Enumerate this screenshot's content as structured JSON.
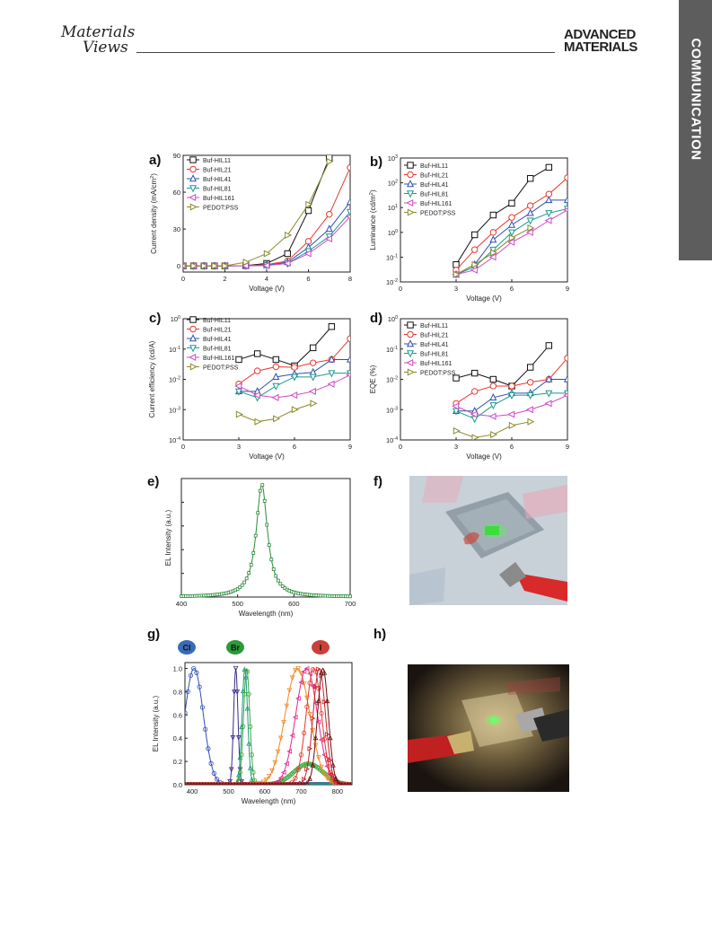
{
  "header": {
    "journal_left_line1": "Materials",
    "journal_left_line2": "Views",
    "journal_right_line1": "ADVANCED",
    "journal_right_line2": "MATERIALS",
    "section_tab": "COMMUNICATION"
  },
  "colors": {
    "HIL11": "#111111",
    "HIL21": "#e8372c",
    "HIL41": "#2f4fb5",
    "HIL81": "#1a9a8a",
    "HIL161": "#d048c8",
    "PEDOT": "#8a8a2a",
    "green": "#2a8a3a"
  },
  "legend_labels": [
    "Buf-HIL11",
    "Buf-HIL21",
    "Buf-HIL41",
    "Buf-HIL81",
    "Buf-HIL161",
    "PEDOT:PSS"
  ],
  "chart_data": [
    {
      "panel": "a)",
      "type": "line",
      "xlabel": "Voltage (V)",
      "ylabel": "Current density (mA/cm2)",
      "xlim": [
        0,
        8
      ],
      "ylim": [
        -5,
        90
      ],
      "xticks": [
        "0",
        "2",
        "4",
        "6",
        "8"
      ],
      "yticks": [
        "0",
        "30",
        "60",
        "90"
      ],
      "series": [
        {
          "name": "Buf-HIL11",
          "x": [
            0,
            0.5,
            1,
            1.5,
            2,
            3,
            4,
            5,
            6,
            7
          ],
          "y": [
            0,
            0,
            0,
            0,
            0,
            0.2,
            2,
            10,
            45,
            88
          ]
        },
        {
          "name": "Buf-HIL21",
          "x": [
            0,
            0.5,
            1,
            1.5,
            2,
            3,
            4,
            5,
            6,
            7,
            8
          ],
          "y": [
            0,
            0,
            0,
            0,
            0,
            0.1,
            1,
            4,
            20,
            42,
            80
          ]
        },
        {
          "name": "Buf-HIL41",
          "x": [
            0,
            0.5,
            1,
            1.5,
            2,
            3,
            4,
            5,
            6,
            7,
            8
          ],
          "y": [
            0,
            0,
            0,
            0,
            0,
            0.1,
            0.5,
            3,
            15,
            30,
            52
          ]
        },
        {
          "name": "Buf-HIL81",
          "x": [
            0,
            0.5,
            1,
            1.5,
            2,
            3,
            4,
            5,
            6,
            7,
            8
          ],
          "y": [
            0,
            0,
            0,
            0,
            0,
            0.1,
            0.5,
            2,
            12,
            24,
            44
          ]
        },
        {
          "name": "Buf-HIL161",
          "x": [
            0,
            0.5,
            1,
            1.5,
            2,
            3,
            4,
            5,
            6,
            7,
            8
          ],
          "y": [
            0,
            0,
            0,
            0,
            0,
            0.1,
            0.3,
            2,
            10,
            22,
            40
          ]
        },
        {
          "name": "PEDOT:PSS",
          "x": [
            0,
            0.5,
            1,
            1.5,
            2,
            3,
            4,
            5,
            6,
            7
          ],
          "y": [
            0,
            0,
            0,
            0,
            0,
            3,
            10,
            25,
            50,
            85
          ]
        }
      ]
    },
    {
      "panel": "b)",
      "type": "line",
      "xlabel": "Voltage (V)",
      "ylabel": "Luminance (cd/m2)",
      "yscale": "log",
      "xlim": [
        0,
        9
      ],
      "ylim": [
        0.01,
        1000
      ],
      "xticks": [
        "0",
        "3",
        "6",
        "9"
      ],
      "yticks": [
        "10-2",
        "10-1",
        "100",
        "101",
        "102",
        "103"
      ],
      "series": [
        {
          "name": "Buf-HIL11",
          "x": [
            3,
            4,
            5,
            6,
            7,
            8
          ],
          "y": [
            0.05,
            0.8,
            5,
            15,
            150,
            420
          ]
        },
        {
          "name": "Buf-HIL21",
          "x": [
            3,
            4,
            5,
            6,
            7,
            8,
            9
          ],
          "y": [
            0.03,
            0.2,
            1,
            4,
            12,
            35,
            160
          ]
        },
        {
          "name": "Buf-HIL41",
          "x": [
            3,
            4,
            5,
            6,
            7,
            8,
            9
          ],
          "y": [
            0.02,
            0.05,
            0.5,
            2,
            6,
            20,
            20
          ]
        },
        {
          "name": "Buf-HIL81",
          "x": [
            3,
            4,
            5,
            6,
            7,
            8,
            9
          ],
          "y": [
            0.02,
            0.04,
            0.2,
            1,
            3,
            6,
            9
          ]
        },
        {
          "name": "Buf-HIL161",
          "x": [
            3,
            4,
            5,
            6,
            7,
            8,
            9
          ],
          "y": [
            0.02,
            0.03,
            0.1,
            0.4,
            1,
            3,
            8
          ]
        },
        {
          "name": "PEDOT:PSS",
          "x": [
            3,
            4,
            5,
            6,
            7
          ],
          "y": [
            0.02,
            0.05,
            0.15,
            0.6,
            1.5
          ]
        }
      ]
    },
    {
      "panel": "c)",
      "type": "line",
      "xlabel": "Voltage (V)",
      "ylabel": "Current efficiency (cd/A)",
      "yscale": "log",
      "xlim": [
        0,
        9
      ],
      "ylim": [
        0.0001,
        1
      ],
      "xticks": [
        "0",
        "3",
        "6",
        "9"
      ],
      "yticks": [
        "10-4",
        "10-3",
        "10-2",
        "10-1",
        "100"
      ],
      "series": [
        {
          "name": "Buf-HIL11",
          "x": [
            3,
            4,
            5,
            6,
            7,
            8
          ],
          "y": [
            0.045,
            0.07,
            0.045,
            0.028,
            0.11,
            0.55
          ]
        },
        {
          "name": "Buf-HIL21",
          "x": [
            3,
            4,
            5,
            6,
            7,
            8,
            9
          ],
          "y": [
            0.007,
            0.019,
            0.026,
            0.025,
            0.035,
            0.045,
            0.22
          ]
        },
        {
          "name": "Buf-HIL41",
          "x": [
            3,
            4,
            5,
            6,
            7,
            8,
            9
          ],
          "y": [
            0.004,
            0.004,
            0.012,
            0.015,
            0.017,
            0.045,
            0.045
          ]
        },
        {
          "name": "Buf-HIL81",
          "x": [
            3,
            4,
            5,
            6,
            7,
            8,
            9
          ],
          "y": [
            0.004,
            0.0025,
            0.006,
            0.012,
            0.012,
            0.016,
            0.016
          ]
        },
        {
          "name": "Buf-HIL161",
          "x": [
            3,
            4,
            5,
            6,
            7,
            8,
            9
          ],
          "y": [
            0.006,
            0.003,
            0.0025,
            0.003,
            0.004,
            0.007,
            0.014
          ]
        },
        {
          "name": "PEDOT:PSS",
          "x": [
            3,
            4,
            5,
            6,
            7
          ],
          "y": [
            0.0007,
            0.0004,
            0.0005,
            0.001,
            0.0016
          ]
        }
      ]
    },
    {
      "panel": "d)",
      "type": "line",
      "xlabel": "Voltage (V)",
      "ylabel": "EQE (%)",
      "yscale": "log",
      "xlim": [
        0,
        9
      ],
      "ylim": [
        0.0001,
        1
      ],
      "xticks": [
        "0",
        "3",
        "6",
        "9"
      ],
      "yticks": [
        "10-4",
        "10-3",
        "10-2",
        "10-1",
        "100"
      ],
      "series": [
        {
          "name": "Buf-HIL11",
          "x": [
            3,
            4,
            5,
            6,
            7,
            8
          ],
          "y": [
            0.011,
            0.016,
            0.01,
            0.006,
            0.025,
            0.13
          ]
        },
        {
          "name": "Buf-HIL21",
          "x": [
            3,
            4,
            5,
            6,
            7,
            8,
            9
          ],
          "y": [
            0.0016,
            0.004,
            0.006,
            0.006,
            0.008,
            0.01,
            0.05
          ]
        },
        {
          "name": "Buf-HIL41",
          "x": [
            3,
            4,
            5,
            6,
            7,
            8,
            9
          ],
          "y": [
            0.0009,
            0.0009,
            0.0025,
            0.0035,
            0.0035,
            0.01,
            0.01
          ]
        },
        {
          "name": "Buf-HIL81",
          "x": [
            3,
            4,
            5,
            6,
            7,
            8,
            9
          ],
          "y": [
            0.0009,
            0.0005,
            0.0014,
            0.003,
            0.003,
            0.0035,
            0.0035
          ]
        },
        {
          "name": "Buf-HIL161",
          "x": [
            3,
            4,
            5,
            6,
            7,
            8,
            9
          ],
          "y": [
            0.0013,
            0.0007,
            0.0006,
            0.0007,
            0.001,
            0.0016,
            0.003
          ]
        },
        {
          "name": "PEDOT:PSS",
          "x": [
            3,
            4,
            5,
            6,
            7
          ],
          "y": [
            0.0002,
            0.00012,
            0.00015,
            0.0003,
            0.0004
          ]
        }
      ]
    },
    {
      "panel": "e)",
      "type": "line",
      "xlabel": "Wavelength (nm)",
      "ylabel": "EL Intensity (a.u.)",
      "xlim": [
        400,
        700
      ],
      "ylim": [
        0,
        1.05
      ],
      "xticks": [
        "400",
        "500",
        "600",
        "700"
      ],
      "peak_nm": 543,
      "fwhm_nm": 24
    },
    {
      "panel": "g)",
      "type": "line",
      "xlabel": "Wavelength (nm)",
      "ylabel": "EL Intensity (a.u.)",
      "xlim": [
        380,
        840
      ],
      "ylim": [
        0,
        1.05
      ],
      "xticks": [
        "400",
        "500",
        "600",
        "700",
        "800"
      ],
      "yticks": [
        "0.0",
        "0.2",
        "0.4",
        "0.6",
        "0.8",
        "1.0"
      ],
      "halide_labels": [
        "Cl",
        "Br",
        "I"
      ],
      "series": [
        {
          "color": "#2f4fb5",
          "peak": 405,
          "fwhm": 60
        },
        {
          "color": "#3a2a8a",
          "peak": 520,
          "fwhm": 14
        },
        {
          "color": "#1a9a8a",
          "peak": 545,
          "fwhm": 18
        },
        {
          "color": "#3aa83a",
          "peak": 550,
          "fwhm": 20,
          "shoulder": 0.18,
          "shoulder_peak": 720
        },
        {
          "color": "#f08a28",
          "peak": 690,
          "fwhm": 80
        },
        {
          "color": "#e02a8a",
          "peak": 715,
          "fwhm": 70
        },
        {
          "color": "#e8372c",
          "peak": 735,
          "fwhm": 50
        },
        {
          "color": "#c8202a",
          "peak": 750,
          "fwhm": 40
        },
        {
          "color": "#6a1010",
          "peak": 760,
          "fwhm": 35
        }
      ]
    }
  ],
  "panels": {
    "a": "a)",
    "b": "b)",
    "c": "c)",
    "d": "d)",
    "e": "e)",
    "f": "f)",
    "g": "g)",
    "h": "h)"
  }
}
